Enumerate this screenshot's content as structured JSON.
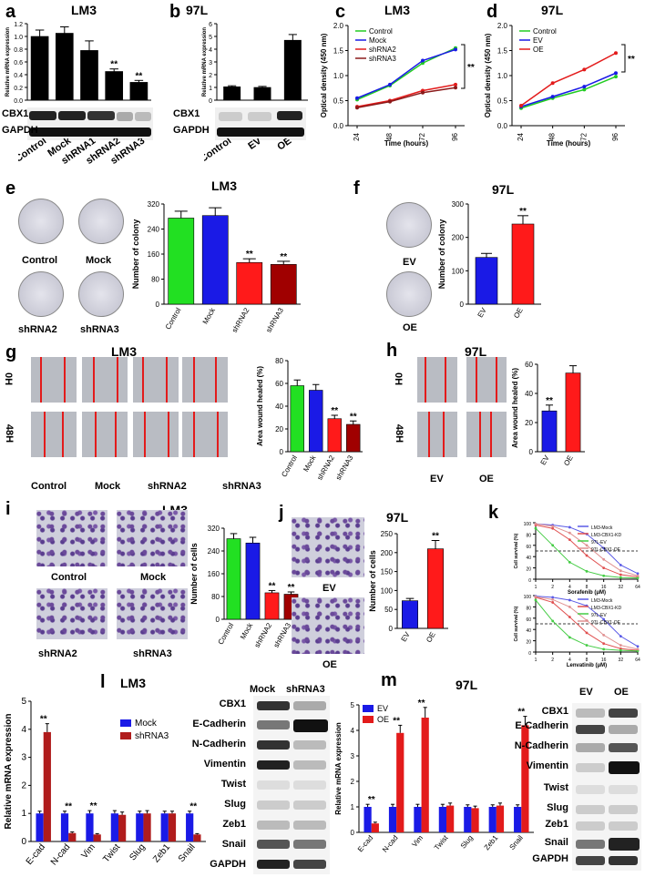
{
  "panels": {
    "a": {
      "letter": "a",
      "title": "LM3",
      "ylabel": "Relative mRNA expression",
      "categories": [
        "Control",
        "Mock",
        "shRNA1",
        "shRNA2",
        "shRNA3"
      ],
      "sig": [
        "",
        "",
        "",
        "**",
        "**"
      ],
      "blot_labels": [
        "CBX1",
        "GAPDH"
      ]
    },
    "b": {
      "letter": "b",
      "title": "97L",
      "ylabel": "Relative mRNA expression",
      "categories": [
        "Control",
        "EV",
        "OE"
      ],
      "blot_labels": [
        "CBX1",
        "GAPDH"
      ]
    },
    "c": {
      "letter": "c",
      "title": "LM3",
      "ylabel": "Optical density (450 nm)",
      "xlabel": "Time (hours)",
      "legend": [
        "Control",
        "Mock",
        "shRNA2",
        "shRNA3"
      ],
      "sig": "**"
    },
    "d": {
      "letter": "d",
      "title": "97L",
      "ylabel": "Optical density (450 nm)",
      "xlabel": "Time (hours)",
      "legend": [
        "Control",
        "EV",
        "OE"
      ],
      "sig": "**"
    },
    "e": {
      "letter": "e",
      "title": "LM3",
      "ylabel": "Number of colony",
      "dish_labels": [
        "Control",
        "Mock",
        "shRNA2",
        "shRNA3"
      ],
      "categories": [
        "Control",
        "Mock",
        "shRNA2",
        "shRNA3"
      ],
      "sig": [
        "",
        "",
        "**",
        "**"
      ]
    },
    "f": {
      "letter": "f",
      "title": "97L",
      "ylabel": "Number of colony",
      "dish_labels": [
        "EV",
        "OE"
      ],
      "categories": [
        "EV",
        "OE"
      ],
      "sig": [
        "",
        "**"
      ]
    },
    "g": {
      "letter": "g",
      "title": "LM3",
      "row_labels": [
        "0H",
        "48H"
      ],
      "col_labels": [
        "Control",
        "Mock",
        "shRNA2",
        "shRNA3"
      ],
      "ylabel": "Area wound healed (%)",
      "categories": [
        "Control",
        "Mock",
        "shRNA2",
        "shRNA3"
      ],
      "sig": [
        "",
        "",
        "**",
        "**"
      ]
    },
    "h": {
      "letter": "h",
      "title": "97L",
      "row_labels": [
        "0H",
        "48H"
      ],
      "col_labels": [
        "EV",
        "OE"
      ],
      "ylabel": "Area wound healed (%)",
      "categories": [
        "EV",
        "OE"
      ],
      "sig": [
        "**",
        ""
      ]
    },
    "i": {
      "letter": "i",
      "title": "LM3",
      "img_labels": [
        "Control",
        "Mock",
        "shRNA2",
        "shRNA3"
      ],
      "ylabel": "Number of cells",
      "categories": [
        "Control",
        "Mock",
        "shRNA2",
        "shRNA3"
      ],
      "sig": [
        "",
        "",
        "**",
        "**"
      ]
    },
    "j": {
      "letter": "j",
      "title": "97L",
      "img_labels": [
        "EV",
        "OE"
      ],
      "ylabel": "Number of cells",
      "categories": [
        "EV",
        "OE"
      ],
      "sig": [
        "",
        "**"
      ]
    },
    "k": {
      "letter": "k",
      "ylabel": "Cell survival (%)",
      "xlabel1": "Sorafenib (μM)",
      "xlabel2": "Lenvatinib (μM)",
      "legend": [
        "LM3-Mock",
        "LM3-CBX1-KD",
        "97L-EV",
        "97L-CBX1-OE"
      ]
    },
    "l": {
      "letter": "l",
      "title": "LM3",
      "ylabel": "Relative mRNA expression",
      "legend": [
        "Mock",
        "shRNA3"
      ],
      "categories": [
        "E-cad",
        "N-cad",
        "Vim",
        "Twist",
        "Slug",
        "Zeb1",
        "Snail"
      ],
      "sig": [
        "**",
        "**",
        "**",
        "",
        "",
        "",
        "**"
      ],
      "blot_cols": [
        "Mock",
        "shRNA3"
      ],
      "blot_labels": [
        "CBX1",
        "E-Cadherin",
        "N-Cadherin",
        "Vimentin",
        "Twist",
        "Slug",
        "Zeb1",
        "Snail",
        "GAPDH"
      ]
    },
    "m": {
      "letter": "m",
      "title": "97L",
      "ylabel": "Relative mRNA expression",
      "legend": [
        "EV",
        "OE"
      ],
      "categories": [
        "E-cad",
        "N-cad",
        "Vim",
        "Twist",
        "Slug",
        "Zeb1",
        "Snail"
      ],
      "sig": [
        "**",
        "**",
        "**",
        "",
        "",
        "",
        "**"
      ],
      "blot_cols": [
        "EV",
        "OE"
      ],
      "blot_labels": [
        "CBX1",
        "E-Cadherin",
        "N-Cadherin",
        "Vimentin",
        "Twist",
        "Slug",
        "Zeb1",
        "Snail",
        "GAPDH"
      ]
    }
  },
  "chart_data": [
    {
      "type": "bar",
      "panel": "a",
      "categories": [
        "Control",
        "Mock",
        "shRNA1",
        "shRNA2",
        "shRNA3"
      ],
      "values": [
        1.0,
        1.05,
        0.78,
        0.45,
        0.28
      ],
      "errors": [
        0.1,
        0.1,
        0.15,
        0.04,
        0.03
      ],
      "ylim": [
        0,
        1.2
      ],
      "yticks": [
        "0.0",
        "0.2",
        "0.4",
        "0.6",
        "0.8",
        "1.0",
        "1.2"
      ],
      "color": "#000000"
    },
    {
      "type": "bar",
      "panel": "b",
      "categories": [
        "Control",
        "EV",
        "OE"
      ],
      "values": [
        1.05,
        1.0,
        4.7
      ],
      "errors": [
        0.08,
        0.08,
        0.45
      ],
      "ylim": [
        0,
        6
      ],
      "yticks": [
        "0",
        "1",
        "2",
        "3",
        "4",
        "5",
        "6"
      ],
      "color": "#000000"
    },
    {
      "type": "line",
      "panel": "c",
      "x": [
        24,
        48,
        72,
        96
      ],
      "ylim": [
        0,
        2
      ],
      "yticks": [
        "0.0",
        "0.5",
        "1.0",
        "1.5",
        "2.0"
      ],
      "xticks": [
        "24",
        "48",
        "72",
        "96"
      ],
      "series": [
        {
          "name": "Control",
          "values": [
            0.52,
            0.8,
            1.25,
            1.55
          ],
          "color": "#22cc22"
        },
        {
          "name": "Mock",
          "values": [
            0.55,
            0.82,
            1.3,
            1.52
          ],
          "color": "#1a1ae6"
        },
        {
          "name": "shRNA2",
          "values": [
            0.38,
            0.5,
            0.7,
            0.82
          ],
          "color": "#e31b1b"
        },
        {
          "name": "shRNA3",
          "values": [
            0.36,
            0.48,
            0.66,
            0.76
          ],
          "color": "#8b1a1a"
        }
      ]
    },
    {
      "type": "line",
      "panel": "d",
      "x": [
        24,
        48,
        72,
        96
      ],
      "ylim": [
        0,
        2
      ],
      "yticks": [
        "0.0",
        "0.5",
        "1.0",
        "1.5",
        "2.0"
      ],
      "xticks": [
        "24",
        "48",
        "72",
        "96"
      ],
      "series": [
        {
          "name": "Control",
          "values": [
            0.35,
            0.55,
            0.72,
            0.98
          ],
          "color": "#22cc22"
        },
        {
          "name": "EV",
          "values": [
            0.38,
            0.58,
            0.78,
            1.05
          ],
          "color": "#1a1ae6"
        },
        {
          "name": "OE",
          "values": [
            0.4,
            0.85,
            1.12,
            1.45
          ],
          "color": "#e31b1b"
        }
      ]
    },
    {
      "type": "bar",
      "panel": "e",
      "categories": [
        "Control",
        "Mock",
        "shRNA2",
        "shRNA3"
      ],
      "values": [
        275,
        283,
        133,
        127
      ],
      "errors": [
        22,
        25,
        12,
        10
      ],
      "ylim": [
        0,
        320
      ],
      "yticks": [
        "0",
        "80",
        "160",
        "240",
        "320"
      ],
      "colors": [
        "#22e022",
        "#1a1ae6",
        "#ff1a1a",
        "#a00000"
      ]
    },
    {
      "type": "bar",
      "panel": "f",
      "categories": [
        "EV",
        "OE"
      ],
      "values": [
        140,
        240
      ],
      "errors": [
        12,
        25
      ],
      "ylim": [
        0,
        300
      ],
      "yticks": [
        "0",
        "100",
        "200",
        "300"
      ],
      "colors": [
        "#1a1ae6",
        "#ff1a1a"
      ]
    },
    {
      "type": "bar",
      "panel": "g",
      "categories": [
        "Control",
        "Mock",
        "shRNA2",
        "shRNA3"
      ],
      "values": [
        58,
        54,
        29,
        24
      ],
      "errors": [
        5,
        5,
        3,
        3
      ],
      "ylim": [
        0,
        80
      ],
      "yticks": [
        "0",
        "20",
        "40",
        "60",
        "80"
      ],
      "colors": [
        "#22e022",
        "#1a1ae6",
        "#ff1a1a",
        "#a00000"
      ]
    },
    {
      "type": "bar",
      "panel": "h",
      "categories": [
        "EV",
        "OE"
      ],
      "values": [
        28,
        54
      ],
      "errors": [
        4,
        5
      ],
      "ylim": [
        0,
        60
      ],
      "yticks": [
        "0",
        "20",
        "40",
        "60"
      ],
      "colors": [
        "#1a1ae6",
        "#ff1a1a"
      ]
    },
    {
      "type": "bar",
      "panel": "i",
      "categories": [
        "Control",
        "Mock",
        "shRNA2",
        "shRNA3"
      ],
      "values": [
        283,
        268,
        93,
        88
      ],
      "errors": [
        18,
        20,
        8,
        8
      ],
      "ylim": [
        0,
        320
      ],
      "yticks": [
        "0",
        "80",
        "160",
        "240",
        "320"
      ],
      "colors": [
        "#22e022",
        "#1a1ae6",
        "#ff1a1a",
        "#a00000"
      ]
    },
    {
      "type": "bar",
      "panel": "j",
      "categories": [
        "EV",
        "OE"
      ],
      "values": [
        73,
        210
      ],
      "errors": [
        6,
        22
      ],
      "ylim": [
        0,
        250
      ],
      "yticks": [
        "0",
        "50",
        "100",
        "150",
        "200",
        "250"
      ],
      "colors": [
        "#1a1ae6",
        "#ff1a1a"
      ]
    },
    {
      "type": "line",
      "panel": "k1",
      "xlabel": "Sorafenib (μM)",
      "ylabel": "Cell survival (%)",
      "ylim": [
        0,
        100
      ],
      "yticks": [
        "0",
        "20",
        "40",
        "60",
        "80",
        "100"
      ],
      "xticks": [
        "1",
        "2",
        "4",
        "8",
        "16",
        "32",
        "64"
      ],
      "x": [
        1,
        2,
        4,
        8,
        16,
        32,
        64
      ],
      "series": [
        {
          "name": "LM3-Mock",
          "values": [
            98,
            96,
            92,
            80,
            55,
            25,
            10
          ],
          "color": "#5a5ae6"
        },
        {
          "name": "LM3-CBX1-KD",
          "values": [
            96,
            90,
            70,
            42,
            20,
            8,
            4
          ],
          "color": "#e05050"
        },
        {
          "name": "97L-EV",
          "values": [
            90,
            60,
            30,
            14,
            6,
            3,
            2
          ],
          "color": "#44cc44"
        },
        {
          "name": "97L-CBX1-OE",
          "values": [
            98,
            94,
            82,
            60,
            35,
            15,
            6
          ],
          "color": "#e09090"
        }
      ]
    },
    {
      "type": "line",
      "panel": "k2",
      "xlabel": "Lenvatinib (μM)",
      "ylabel": "Cell survival (%)",
      "ylim": [
        0,
        100
      ],
      "yticks": [
        "0",
        "20",
        "40",
        "60",
        "80",
        "100"
      ],
      "xticks": [
        "1",
        "2",
        "4",
        "8",
        "16",
        "32",
        "64"
      ],
      "x": [
        1,
        2,
        4,
        8,
        16,
        32,
        64
      ],
      "series": [
        {
          "name": "LM3-Mock",
          "values": [
            99,
            97,
            92,
            82,
            58,
            28,
            10
          ],
          "color": "#5a5ae6"
        },
        {
          "name": "LM3-CBX1-KD",
          "values": [
            97,
            88,
            62,
            34,
            15,
            6,
            3
          ],
          "color": "#e05050"
        },
        {
          "name": "97L-EV",
          "values": [
            92,
            55,
            26,
            12,
            5,
            3,
            2
          ],
          "color": "#44cc44"
        },
        {
          "name": "97L-CBX1-OE",
          "values": [
            98,
            93,
            80,
            56,
            30,
            12,
            5
          ],
          "color": "#e09090"
        }
      ]
    },
    {
      "type": "bar",
      "panel": "l",
      "categories": [
        "E-cad",
        "N-cad",
        "Vim",
        "Twist",
        "Slug",
        "Zeb1",
        "Snail"
      ],
      "ylim": [
        0,
        5
      ],
      "yticks": [
        "0",
        "1",
        "2",
        "3",
        "4",
        "5"
      ],
      "series": [
        {
          "name": "Mock",
          "values": [
            1,
            1,
            1,
            1,
            1,
            1,
            1
          ],
          "color": "#1a1ae6"
        },
        {
          "name": "shRNA3",
          "values": [
            3.9,
            0.3,
            0.25,
            0.95,
            1.0,
            1.0,
            0.25
          ],
          "color": "#b01c1c"
        }
      ],
      "errors": [
        [
          0.08,
          0.08,
          0.1,
          0.1,
          0.08,
          0.08,
          0.08
        ],
        [
          0.3,
          0.04,
          0.03,
          0.1,
          0.1,
          0.08,
          0.03
        ]
      ]
    },
    {
      "type": "bar",
      "panel": "m",
      "categories": [
        "E-cad",
        "N-cad",
        "Vim",
        "Twist",
        "Slug",
        "Zeb1",
        "Snail"
      ],
      "ylim": [
        0,
        5
      ],
      "yticks": [
        "0",
        "1",
        "2",
        "3",
        "4",
        "5"
      ],
      "series": [
        {
          "name": "EV",
          "values": [
            1,
            1,
            1,
            1,
            1,
            1,
            1
          ],
          "color": "#1a1ae6"
        },
        {
          "name": "OE",
          "values": [
            0.35,
            3.9,
            4.5,
            1.05,
            0.95,
            1.05,
            4.2
          ],
          "color": "#e31b1b"
        }
      ],
      "errors": [
        [
          0.1,
          0.1,
          0.1,
          0.1,
          0.08,
          0.08,
          0.08
        ],
        [
          0.05,
          0.3,
          0.4,
          0.1,
          0.08,
          0.1,
          0.35
        ]
      ]
    }
  ]
}
